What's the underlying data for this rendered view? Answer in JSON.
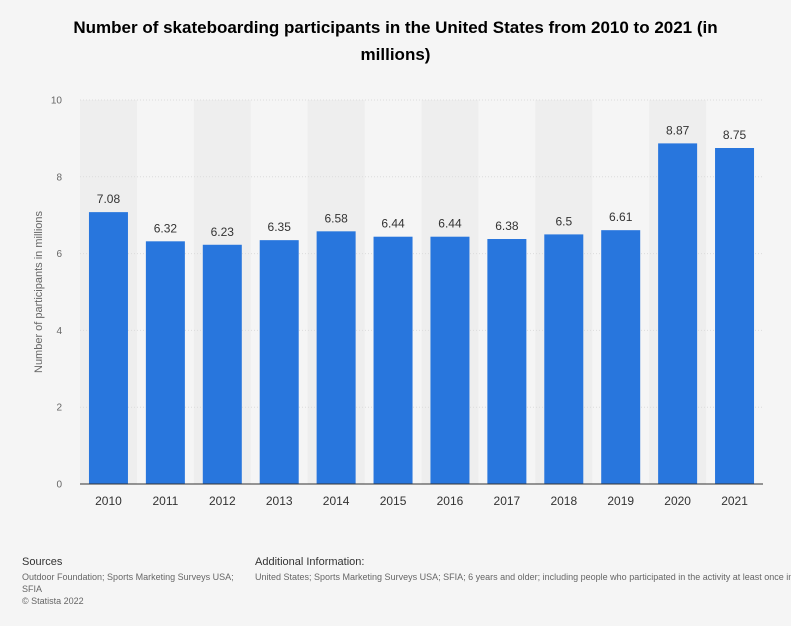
{
  "title": "Number of skateboarding participants in the United States from 2010 to 2021 (in millions)",
  "chart_data": {
    "type": "bar",
    "title": "Number of skateboarding participants in the United States from 2010 to 2021 (in millions)",
    "categories": [
      "2010",
      "2011",
      "2012",
      "2013",
      "2014",
      "2015",
      "2016",
      "2017",
      "2018",
      "2019",
      "2020",
      "2021"
    ],
    "values": [
      7.08,
      6.32,
      6.23,
      6.35,
      6.58,
      6.44,
      6.44,
      6.38,
      6.5,
      6.61,
      8.87,
      8.75
    ],
    "value_labels": [
      "7.08",
      "6.32",
      "6.23",
      "6.35",
      "6.58",
      "6.44",
      "6.44",
      "6.38",
      "6.5",
      "6.61",
      "8.87",
      "8.75"
    ],
    "xlabel": "",
    "ylabel": "Number of participants in millions",
    "ylim": [
      0,
      10
    ],
    "yticks": [
      0,
      2,
      4,
      6,
      8,
      10
    ],
    "grid": true,
    "legend": "none"
  },
  "colors": {
    "bar": "#2876dd",
    "band": "#eeeeee",
    "grid": "#dcdcdc",
    "axis": "#333333"
  },
  "footer": {
    "sources_heading": "Sources",
    "sources_text": "Outdoor Foundation; Sports Marketing Surveys USA; SFIA",
    "copyright": "© Statista 2022",
    "additional_heading": "Additional Information:",
    "additional_text": "United States; Sports Marketing Surveys USA; SFIA; 6 years and older; including people who participated in the activity at least once in the calendar year"
  }
}
